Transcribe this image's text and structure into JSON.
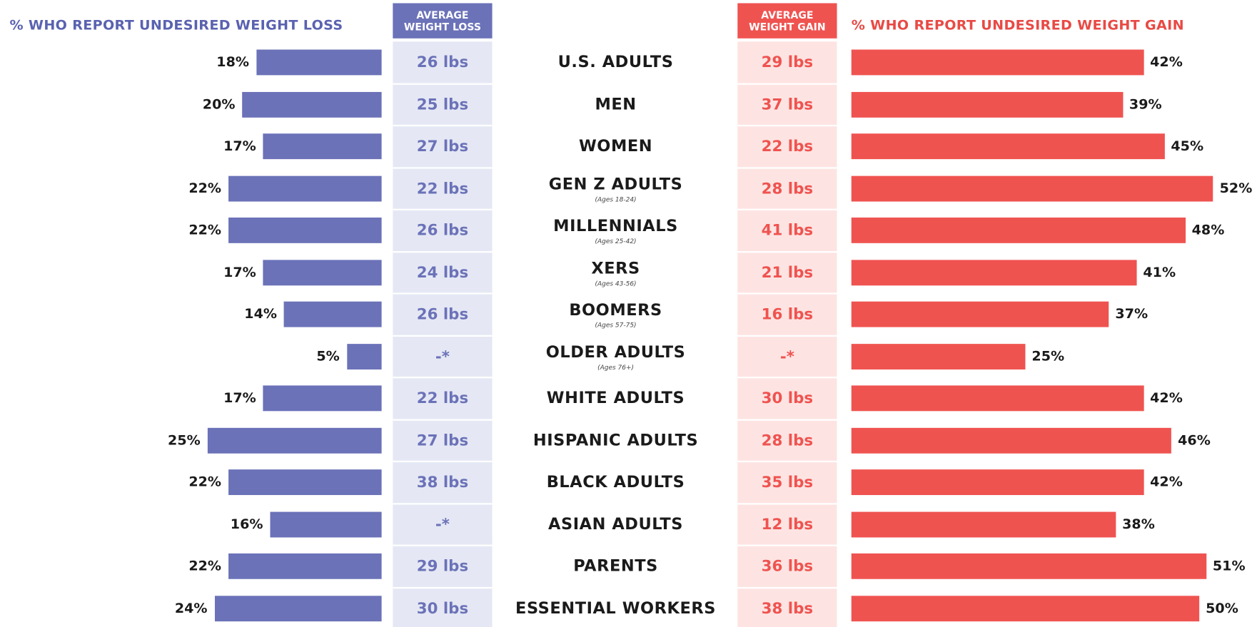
{
  "chart_data": {
    "type": "bar",
    "categories": [
      "U.S. ADULTS",
      "MEN",
      "WOMEN",
      "GEN Z ADULTS",
      "MILLENNIALS",
      "XERS",
      "BOOMERS",
      "OLDER ADULTS",
      "WHITE ADULTS",
      "HISPANIC ADULTS",
      "BLACK ADULTS",
      "ASIAN ADULTS",
      "PARENTS",
      "ESSENTIAL WORKERS"
    ],
    "sublabels": [
      null,
      null,
      null,
      "(Ages 18-24)",
      "(Ages 25-42)",
      "(Ages 43-56)",
      "(Ages 57-75)",
      "(Ages 76+)",
      null,
      null,
      null,
      null,
      null,
      null
    ],
    "series": [
      {
        "name": "% WHO REPORT UNDESIRED WEIGHT LOSS",
        "color": "#6b72b8",
        "values": [
          18,
          20,
          17,
          22,
          22,
          17,
          14,
          5,
          17,
          25,
          22,
          16,
          22,
          24
        ],
        "value_labels": [
          "18%",
          "20%",
          "17%",
          "22%",
          "22%",
          "17%",
          "14%",
          "5%",
          "17%",
          "25%",
          "22%",
          "16%",
          "22%",
          "24%"
        ]
      },
      {
        "name": "% WHO REPORT UNDESIRED WEIGHT GAIN",
        "color": "#ef5350",
        "values": [
          42,
          39,
          45,
          52,
          48,
          41,
          37,
          25,
          42,
          46,
          42,
          38,
          51,
          50
        ],
        "value_labels": [
          "42%",
          "39%",
          "45%",
          "52%",
          "48%",
          "41%",
          "37%",
          "25%",
          "42%",
          "46%",
          "42%",
          "38%",
          "51%",
          "50%"
        ]
      }
    ],
    "columns": [
      {
        "name": "AVERAGE WEIGHT LOSS",
        "color": "#6b72b8",
        "background": "#e5e8f4",
        "values": [
          26,
          25,
          27,
          22,
          26,
          24,
          26,
          null,
          22,
          27,
          38,
          null,
          29,
          30
        ],
        "value_labels": [
          "26 lbs",
          "25 lbs",
          "27 lbs",
          "22 lbs",
          "26 lbs",
          "24 lbs",
          "26 lbs",
          "-*",
          "22 lbs",
          "27 lbs",
          "38 lbs",
          "-*",
          "29 lbs",
          "30 lbs"
        ]
      },
      {
        "name": "AVERAGE WEIGHT GAIN",
        "color": "#ef5350",
        "background": "#fde4e2",
        "values": [
          29,
          37,
          22,
          28,
          41,
          21,
          16,
          null,
          30,
          28,
          35,
          12,
          36,
          38
        ],
        "value_labels": [
          "29 lbs",
          "37 lbs",
          "22 lbs",
          "28 lbs",
          "41 lbs",
          "21 lbs",
          "16 lbs",
          "-*",
          "30 lbs",
          "28 lbs",
          "35 lbs",
          "12 lbs",
          "36 lbs",
          "38 lbs"
        ]
      }
    ]
  }
}
